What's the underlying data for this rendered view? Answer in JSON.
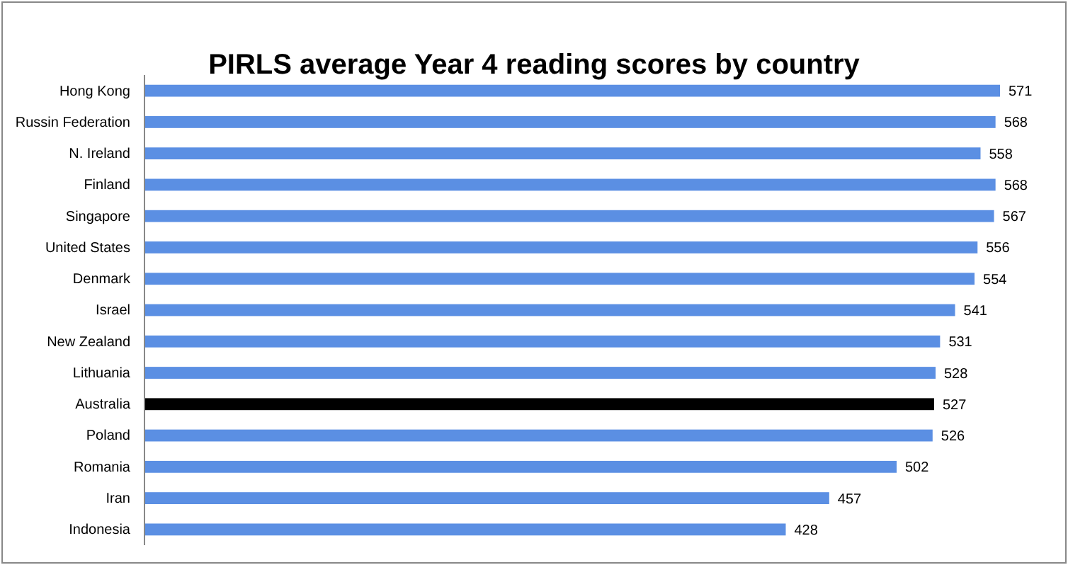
{
  "chart_data": {
    "type": "bar",
    "orientation": "horizontal",
    "title": "PIRLS average Year 4 reading scores by country",
    "categories": [
      "Hong Kong",
      "Russin Federation",
      "N. Ireland",
      "Finland",
      "Singapore",
      "United States",
      "Denmark",
      "Israel",
      "New Zealand",
      "Lithuania",
      "Australia",
      "Poland",
      "Romania",
      "Iran",
      "Indonesia"
    ],
    "values": [
      571,
      568,
      558,
      568,
      567,
      556,
      554,
      541,
      531,
      528,
      527,
      526,
      502,
      457,
      428
    ],
    "colors": [
      "#5b8fe3",
      "#5b8fe3",
      "#5b8fe3",
      "#5b8fe3",
      "#5b8fe3",
      "#5b8fe3",
      "#5b8fe3",
      "#5b8fe3",
      "#5b8fe3",
      "#5b8fe3",
      "#000000",
      "#5b8fe3",
      "#5b8fe3",
      "#5b8fe3",
      "#5b8fe3"
    ],
    "data_labels": true
  }
}
